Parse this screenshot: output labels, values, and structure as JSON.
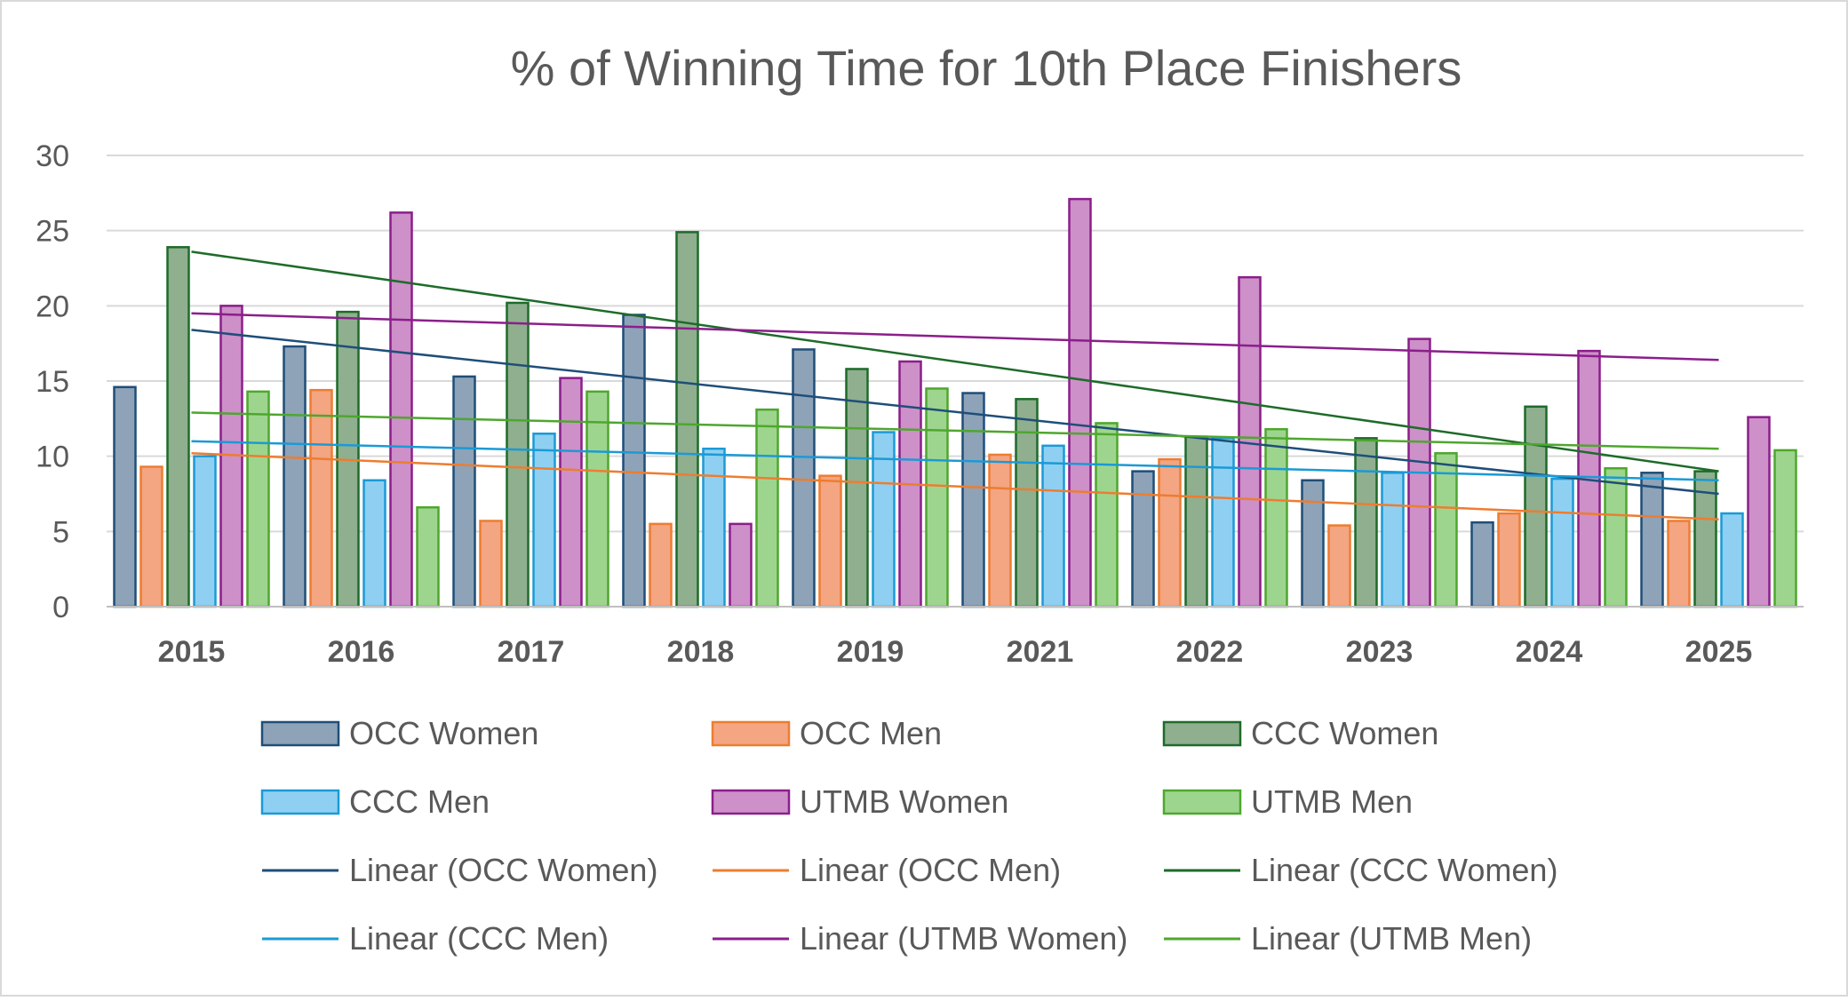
{
  "chart_data": {
    "type": "bar",
    "title": "% of Winning Time for 10th Place Finishers",
    "xlabel": "",
    "ylabel": "",
    "ylim": [
      0,
      30
    ],
    "yticks": [
      0,
      5,
      10,
      15,
      20,
      25,
      30
    ],
    "grid": true,
    "legend_position": "bottom",
    "categories": [
      "2015",
      "2016",
      "2017",
      "2018",
      "2019",
      "2021",
      "2022",
      "2023",
      "2024",
      "2025"
    ],
    "series": [
      {
        "name": "OCC Women",
        "color": "#8ea3b8",
        "border": "#1f4e79",
        "values": [
          14.6,
          17.3,
          15.3,
          19.4,
          17.1,
          14.2,
          9.0,
          8.4,
          5.6,
          8.9
        ]
      },
      {
        "name": "OCC Men",
        "color": "#f4a582",
        "border": "#ed7d31",
        "values": [
          9.3,
          14.4,
          5.7,
          5.5,
          8.7,
          10.1,
          9.8,
          5.4,
          6.2,
          5.7
        ]
      },
      {
        "name": "CCC Women",
        "color": "#8faf8f",
        "border": "#1e6b2a",
        "values": [
          23.9,
          19.6,
          20.2,
          24.9,
          15.8,
          13.8,
          11.3,
          11.2,
          13.3,
          9.0
        ]
      },
      {
        "name": "CCC Men",
        "color": "#8fd0f2",
        "border": "#1b9ad6",
        "values": [
          10.0,
          8.4,
          11.5,
          10.5,
          11.6,
          10.7,
          11.2,
          8.9,
          8.5,
          6.2
        ]
      },
      {
        "name": "UTMB Women",
        "color": "#cd90c8",
        "border": "#8b1e8b",
        "values": [
          20.0,
          26.2,
          15.2,
          5.5,
          16.3,
          27.1,
          21.9,
          17.8,
          17.0,
          12.6
        ]
      },
      {
        "name": "UTMB Men",
        "color": "#9ed58e",
        "border": "#4ea72e",
        "values": [
          14.3,
          6.6,
          14.3,
          13.1,
          14.5,
          12.2,
          11.8,
          10.2,
          9.2,
          10.4
        ]
      }
    ],
    "trendlines": [
      {
        "name": "Linear (OCC Women)",
        "color": "#1f4e79",
        "start": 18.4,
        "end": 7.5
      },
      {
        "name": "Linear (OCC Men)",
        "color": "#ed7d31",
        "start": 10.2,
        "end": 5.8
      },
      {
        "name": "Linear (CCC Women)",
        "color": "#1e6b2a",
        "start": 23.6,
        "end": 9.0
      },
      {
        "name": "Linear (CCC Men)",
        "color": "#1b9ad6",
        "start": 11.0,
        "end": 8.4
      },
      {
        "name": "Linear (UTMB Women)",
        "color": "#8b1e8b",
        "start": 19.5,
        "end": 16.4
      },
      {
        "name": "Linear (UTMB Men)",
        "color": "#4ea72e",
        "start": 12.9,
        "end": 10.5
      }
    ]
  }
}
